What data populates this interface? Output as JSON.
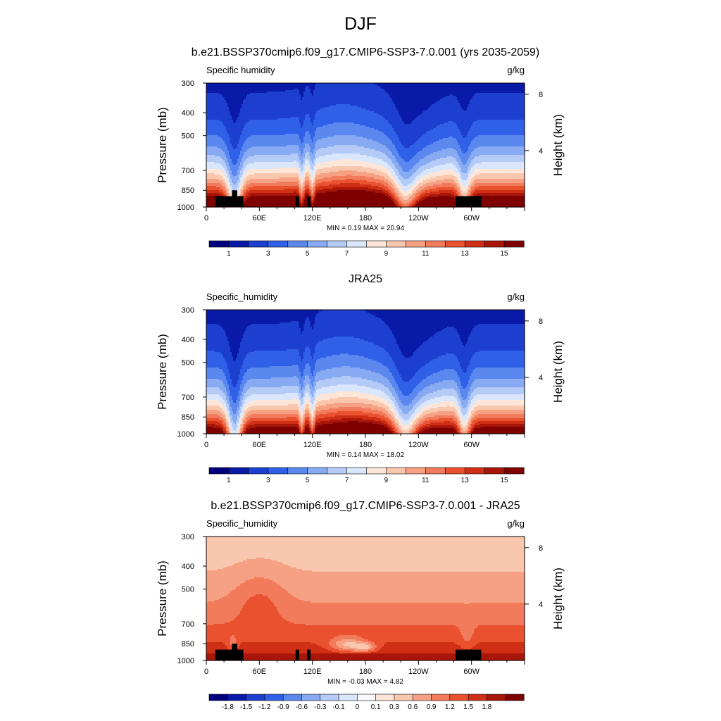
{
  "figure_title": "DJF",
  "colors": {
    "abs_levels": [
      "#00007f",
      "#0a1aa8",
      "#1c3fd0",
      "#3060e8",
      "#5b88ee",
      "#88aaf2",
      "#b4cbf7",
      "#dae6fb",
      "#fde6d8",
      "#f9c6ae",
      "#f6a183",
      "#f27b5c",
      "#e9512f",
      "#cf2f14",
      "#a8160a",
      "#7f0000"
    ],
    "diff_levels": [
      "#00007f",
      "#0a1aa8",
      "#1c3fd0",
      "#3060e8",
      "#5b88ee",
      "#88aaf2",
      "#b4cbf7",
      "#dae6fb",
      "#fbfbff",
      "#fde6d8",
      "#f9c6ae",
      "#f6a183",
      "#f27b5c",
      "#e9512f",
      "#cf2f14",
      "#a8160a",
      "#7f0000"
    ],
    "topography": "#000000"
  },
  "chart_data": [
    {
      "type": "heatmap",
      "title": "b.e21.BSSP370cmip6.f09_g17.CMIP6-SSP3-7.0.001 (yrs 2035-2059)",
      "variable": "Specific humidity",
      "units": "g/kg",
      "ylabel": "Pressure (mb)",
      "y2label": "Height (km)",
      "x_ticks": [
        "0",
        "60E",
        "120E",
        "180",
        "120W",
        "60W"
      ],
      "y_ticks": [
        "300",
        "400",
        "500",
        "700",
        "850",
        "1000"
      ],
      "y2_ticks": [
        "8",
        "4"
      ],
      "xlim": [
        0,
        360
      ],
      "ylim": [
        1000,
        300
      ],
      "stats": "MIN =   0.19  MAX =  20.94",
      "min": 0.19,
      "max": 20.94,
      "colorbar_labels": [
        "1",
        "3",
        "5",
        "7",
        "9",
        "11",
        "13",
        "15"
      ],
      "field": "cesm"
    },
    {
      "type": "heatmap",
      "title": "JRA25",
      "variable": "Specific_humidity",
      "units": "g/kg",
      "ylabel": "Pressure (mb)",
      "y2label": "Height (km)",
      "x_ticks": [
        "0",
        "60E",
        "120E",
        "180",
        "120W",
        "60W"
      ],
      "y_ticks": [
        "300",
        "400",
        "500",
        "700",
        "850",
        "1000"
      ],
      "y2_ticks": [
        "8",
        "4"
      ],
      "xlim": [
        0,
        360
      ],
      "ylim": [
        1000,
        300
      ],
      "stats": "MIN =   0.14  MAX =  18.02",
      "min": 0.14,
      "max": 18.02,
      "colorbar_labels": [
        "1",
        "3",
        "5",
        "7",
        "9",
        "11",
        "13",
        "15"
      ],
      "field": "jra"
    },
    {
      "type": "heatmap",
      "title": "b.e21.BSSP370cmip6.f09_g17.CMIP6-SSP3-7.0.001 - JRA25",
      "variable": "Specific_humidity",
      "units": "g/kg",
      "ylabel": "Pressure (mb)",
      "y2label": "Height (km)",
      "x_ticks": [
        "0",
        "60E",
        "120E",
        "180",
        "120W",
        "60W"
      ],
      "y_ticks": [
        "300",
        "400",
        "500",
        "700",
        "850",
        "1000"
      ],
      "y2_ticks": [
        "8",
        "4"
      ],
      "xlim": [
        0,
        360
      ],
      "ylim": [
        1000,
        300
      ],
      "stats": "MIN =  -0.03  MAX =   4.82",
      "min": -0.03,
      "max": 4.82,
      "colorbar_labels": [
        "-1.8",
        "-1.5",
        "-1.2",
        "-0.9",
        "-0.6",
        "-0.3",
        "-0.1",
        "0",
        "0.1",
        "0.3",
        "0.6",
        "0.9",
        "1.2",
        "1.5",
        "1.8"
      ],
      "field": "diff"
    }
  ]
}
